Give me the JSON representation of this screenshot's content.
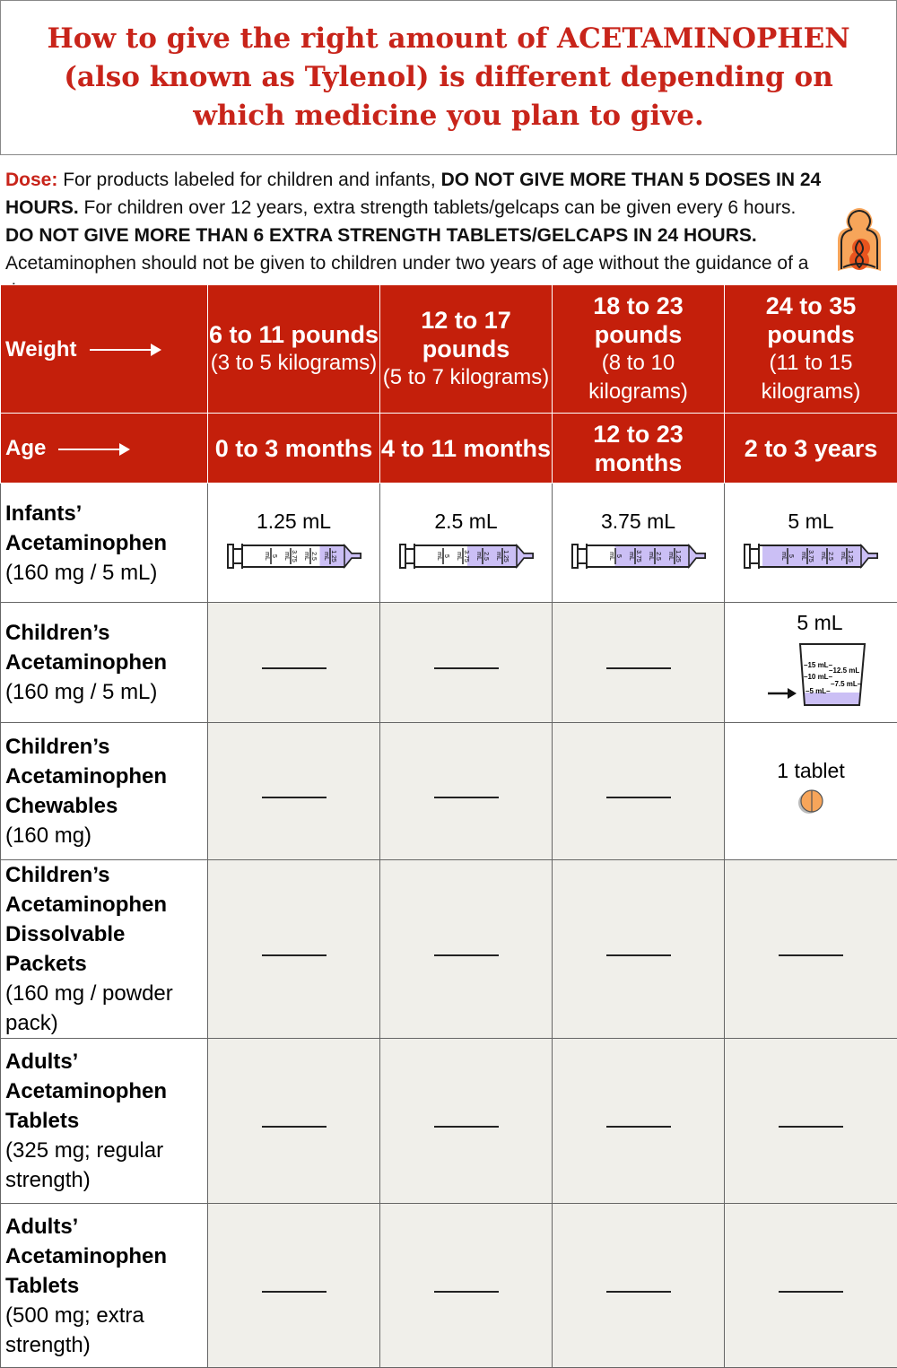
{
  "title": "How to give the right amount of ACETAMINOPHEN (also known as Tylenol) is different depending on which medicine you plan to give.",
  "dose": {
    "label": "Dose:",
    "t1": " For products labeled for children and infants, ",
    "b1": "DO NOT GIVE MORE THAN 5 DOSES IN 24 HOURS.",
    "t2": " For children over 12 years, extra strength tablets/gelcaps can be given every 6 hours. ",
    "b2": "DO NOT GIVE MORE THAN 6 EXTRA STRENGTH TABLETS/GELCAPS IN 24 HOURS.",
    "t3": " Acetaminophen should not be given to children under two years of age without the guidance of a doctor."
  },
  "colors": {
    "red": "#c41f0b",
    "gray_cell": "#f0efea",
    "syringe_fill": "#cbbff5",
    "orange": "#f7a55a"
  },
  "header": {
    "weight_label": "Weight",
    "age_label": "Age",
    "weights": [
      {
        "lb": "6 to 11 pounds",
        "kg": "(3 to 5 kilograms)"
      },
      {
        "lb": "12 to 17 pounds",
        "kg": "(5 to 7 kilograms)"
      },
      {
        "lb": "18 to 23 pounds",
        "kg": "(8 to 10 kilograms)"
      },
      {
        "lb": "24 to 35 pounds",
        "kg": "(11 to 15 kilograms)"
      }
    ],
    "ages": [
      "0 to 3 months",
      "4 to 11 months",
      "12 to 23 months",
      "2 to 3 years"
    ]
  },
  "syringe_marks": [
    "5",
    "3.75",
    "2.5",
    "1.25"
  ],
  "syringe_unit": "mL",
  "cup_marks": [
    "15 mL",
    "12.5 mL",
    "10 mL",
    "7.5 mL",
    "5 mL"
  ],
  "rows": [
    {
      "name": "Infants’ Acetaminophen",
      "detail": "(160 mg / 5 mL)",
      "cells": [
        {
          "text": "1.25 mL",
          "icon": "syringe-icon",
          "ml": 1.25
        },
        {
          "text": "2.5 mL",
          "icon": "syringe-icon",
          "ml": 2.5
        },
        {
          "text": "3.75 mL",
          "icon": "syringe-icon",
          "ml": 3.75
        },
        {
          "text": "5 mL",
          "icon": "syringe-icon",
          "ml": 5
        }
      ]
    },
    {
      "name": "Children’s Acetaminophen",
      "detail": "(160 mg / 5 mL)",
      "cells": [
        null,
        null,
        null,
        {
          "text": "5 mL",
          "icon": "measuring-cup-icon",
          "ml": 5
        }
      ]
    },
    {
      "name": "Children’s Acetaminophen Chewables",
      "detail": "(160 mg)",
      "cells": [
        null,
        null,
        null,
        {
          "text": "1 tablet",
          "icon": "tablet-icon"
        }
      ]
    },
    {
      "name": "Children’s Acetaminophen Dissolvable Packets",
      "detail": "(160 mg / powder pack)",
      "cells": [
        null,
        null,
        null,
        null
      ]
    },
    {
      "name": "Adults’ Acetaminophen Tablets",
      "detail": "(325 mg; regular strength)",
      "cells": [
        null,
        null,
        null,
        null
      ]
    },
    {
      "name": "Adults’ Acetaminophen Tablets",
      "detail": "(500 mg; extra strength)",
      "cells": [
        null,
        null,
        null,
        null
      ]
    }
  ]
}
